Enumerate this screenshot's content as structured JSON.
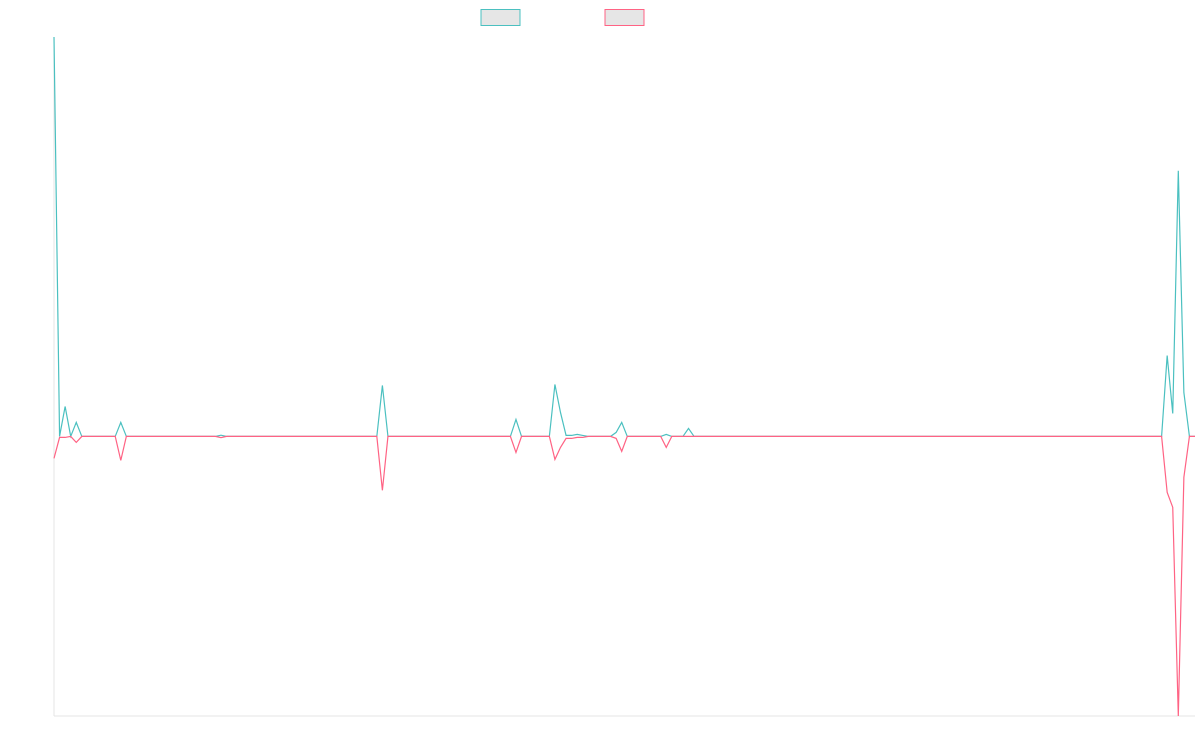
{
  "chart_data": {
    "type": "line",
    "categories": [
      null,
      null,
      null,
      null,
      null,
      null,
      null,
      null,
      null,
      null,
      null,
      null,
      null,
      null,
      null,
      null,
      null,
      null,
      null,
      null,
      null,
      null,
      null,
      null,
      null,
      null,
      null,
      null,
      null,
      null,
      null,
      null,
      null,
      null,
      null,
      null,
      null,
      null,
      null,
      null,
      null,
      null,
      null,
      null,
      null,
      null,
      null,
      null,
      null,
      null,
      null,
      null,
      null,
      null,
      null,
      null,
      null,
      null,
      null,
      null,
      null,
      null,
      null,
      null,
      null,
      null,
      null,
      null,
      null,
      null,
      null,
      null,
      null,
      null,
      null,
      null,
      null,
      null,
      null,
      null,
      null,
      null,
      null,
      null,
      null,
      null,
      null,
      null,
      null,
      null,
      null,
      null,
      null,
      null,
      null,
      null,
      null,
      null,
      null,
      null,
      null,
      null,
      null,
      null,
      null,
      null,
      null,
      null,
      null,
      null,
      null,
      null,
      null,
      null,
      null,
      null,
      null,
      null,
      null,
      null,
      null,
      null,
      null,
      null,
      null,
      null,
      null,
      null,
      null,
      null,
      null,
      null,
      null,
      null,
      null,
      null,
      null,
      null,
      null,
      null,
      null,
      null,
      null,
      null,
      null,
      null,
      null,
      null,
      null,
      null,
      null,
      null,
      null,
      null,
      null,
      null,
      null,
      null,
      null,
      null,
      null,
      null,
      null,
      null,
      null,
      null,
      null,
      null,
      null,
      null,
      null,
      null,
      null,
      null,
      null,
      null,
      null,
      null,
      null,
      null,
      null,
      null,
      null,
      null,
      null,
      null,
      null,
      null,
      null,
      null,
      null,
      null,
      null,
      null,
      null,
      null,
      null,
      null,
      null,
      null,
      null,
      null,
      null,
      null,
      null,
      null
    ],
    "series": [
      {
        "color": "#4bc0c0",
        "values": [
          100,
          0,
          7.5,
          0,
          3.5,
          0,
          0,
          0,
          0,
          0,
          0,
          0,
          3.5,
          0,
          0,
          0,
          0,
          0,
          0,
          0,
          0,
          0,
          0,
          0,
          0,
          0,
          0,
          0,
          0,
          0,
          0.3,
          0,
          0,
          0,
          0,
          0,
          0,
          0,
          0,
          0,
          0,
          0,
          0,
          0,
          0,
          0,
          0,
          0,
          0,
          0,
          0,
          0,
          0,
          0,
          0,
          0,
          0,
          0,
          0,
          12.75,
          0,
          0,
          0,
          0,
          0,
          0,
          0,
          0,
          0,
          0,
          0,
          0,
          0,
          0,
          0,
          0,
          0,
          0,
          0,
          0,
          0,
          0,
          0,
          4.25,
          0,
          0,
          0,
          0,
          0,
          0,
          13,
          6,
          0.25,
          0.25,
          0.5,
          0.25,
          0,
          0,
          0,
          0,
          0,
          1,
          3.5,
          0,
          0,
          0,
          0,
          0,
          0,
          0,
          0.5,
          0,
          0,
          0,
          2,
          0,
          0,
          0,
          0,
          0,
          0,
          0,
          0,
          0,
          0,
          0,
          0,
          0,
          0,
          0,
          0,
          0,
          0,
          0,
          0,
          0,
          0,
          0,
          0,
          0,
          0,
          0,
          0,
          0,
          0,
          0,
          0,
          0,
          0,
          0,
          0,
          0,
          0,
          0,
          0,
          0,
          0,
          0,
          0,
          0,
          0,
          0,
          0,
          0,
          0,
          0,
          0,
          0,
          0,
          0,
          0,
          0,
          0,
          0,
          0,
          0,
          0,
          0,
          0,
          0,
          0,
          0,
          0,
          0,
          0,
          0,
          0,
          0,
          0,
          0,
          0,
          0,
          0,
          0,
          0,
          0,
          0,
          0,
          0,
          0,
          20.25,
          5.75,
          66.5,
          11,
          0,
          0
        ]
      },
      {
        "color": "#ff6384",
        "values": [
          -5.5,
          -0.25,
          -0.25,
          0,
          -1.5,
          0,
          0,
          0,
          0,
          0,
          0,
          0,
          -6,
          0,
          0,
          0,
          0,
          0,
          0,
          0,
          0,
          0,
          0,
          0,
          0,
          0,
          0,
          0,
          0,
          0,
          -0.3,
          0,
          0,
          0,
          0,
          0,
          0,
          0,
          0,
          0,
          0,
          0,
          0,
          0,
          0,
          0,
          0,
          0,
          0,
          0,
          0,
          0,
          0,
          0,
          0,
          0,
          0,
          0,
          0,
          -13.5,
          0,
          0,
          0,
          0,
          0,
          0,
          0,
          0,
          0,
          0,
          0,
          0,
          0,
          0,
          0,
          0,
          0,
          0,
          0,
          0,
          0,
          0,
          0,
          -4,
          0,
          0,
          0,
          0,
          0,
          0,
          -5.75,
          -2.75,
          -0.5,
          -0.5,
          -0.25,
          -0.25,
          0,
          0,
          0,
          0,
          0,
          -0.5,
          -3.75,
          0,
          0,
          0,
          0,
          0,
          0,
          0,
          -2.75,
          0,
          0,
          0,
          0,
          0,
          0,
          0,
          0,
          0,
          0,
          0,
          0,
          0,
          0,
          0,
          0,
          0,
          0,
          0,
          0,
          0,
          0,
          0,
          0,
          0,
          0,
          0,
          0,
          0,
          0,
          0,
          0,
          0,
          0,
          0,
          0,
          0,
          0,
          0,
          0,
          0,
          0,
          0,
          0,
          0,
          0,
          0,
          0,
          0,
          0,
          0,
          0,
          0,
          0,
          0,
          0,
          0,
          0,
          0,
          0,
          0,
          0,
          0,
          0,
          0,
          0,
          0,
          0,
          0,
          0,
          0,
          0,
          0,
          0,
          0,
          0,
          0,
          0,
          0,
          0,
          0,
          0,
          0,
          0,
          0,
          0,
          0,
          0,
          0,
          -14,
          -17.75,
          -70,
          -10.25,
          0,
          0
        ]
      }
    ],
    "ylim": [
      -70,
      100
    ]
  }
}
